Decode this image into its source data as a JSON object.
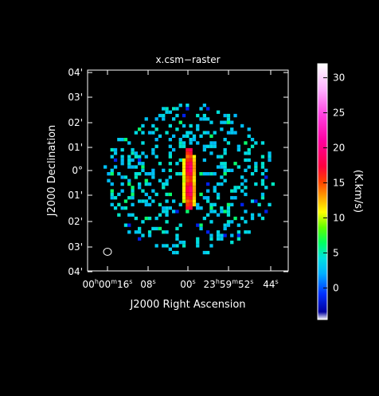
{
  "chart_data": {
    "type": "heatmap",
    "title": "x.csm−raster",
    "xlabel": "J2000 Right Ascension",
    "ylabel": "J2000 Declination",
    "x_ticks": [
      {
        "h": "00",
        "hs": "h",
        "m": "00",
        "ms": "m",
        "s": "16",
        "ss": "s"
      },
      {
        "h": "",
        "hs": "",
        "m": "",
        "ms": "",
        "s": "08",
        "ss": "s"
      },
      {
        "h": "",
        "hs": "",
        "m": "",
        "ms": "",
        "s": "00",
        "ss": "s"
      },
      {
        "h": "23",
        "hs": "h",
        "m": "59",
        "ms": "m",
        "s": "52",
        "ss": "s"
      },
      {
        "h": "",
        "hs": "",
        "m": "",
        "ms": "",
        "s": "44",
        "ss": "s"
      }
    ],
    "y_ticks": [
      "04'",
      "03'",
      "02'",
      "01'",
      "0°",
      "01'",
      "02'",
      "03'",
      "04'"
    ],
    "colorbar": {
      "label": "(K.km/s)",
      "ticks": [
        "0",
        "5",
        "10",
        "15",
        "20",
        "25",
        "30"
      ],
      "vmin": -4.5,
      "vmax": 32
    },
    "beam": "ellipse",
    "grid": false,
    "palette": "rainbow"
  }
}
